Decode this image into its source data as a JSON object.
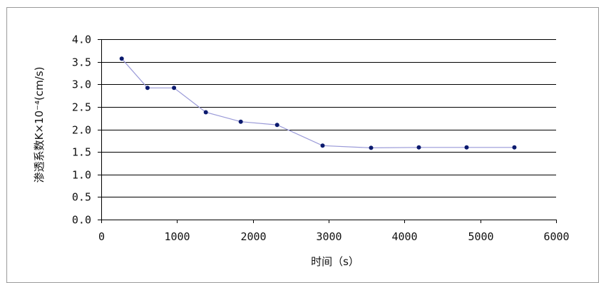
{
  "chart_data": {
    "type": "line",
    "title": "",
    "xlabel": "时间（s）",
    "ylabel": "渗透系数K×10⁻⁴(cm/s)",
    "xlim": [
      0,
      6000
    ],
    "ylim": [
      0.0,
      4.0
    ],
    "x_ticks": [
      "0",
      "1000",
      "2000",
      "3000",
      "4000",
      "5000",
      "6000"
    ],
    "y_ticks": [
      "0.0",
      "0.5",
      "1.0",
      "1.5",
      "2.0",
      "2.5",
      "3.0",
      "3.5",
      "4.0"
    ],
    "grid": "horizontal",
    "legend": "none",
    "series": [
      {
        "x": [
          270,
          610,
          960,
          1380,
          1840,
          2320,
          2920,
          3560,
          4190,
          4820,
          5450
        ],
        "y": [
          3.57,
          2.92,
          2.92,
          2.38,
          2.17,
          2.1,
          1.64,
          1.59,
          1.6,
          1.6,
          1.6
        ]
      }
    ],
    "colors": {
      "line": "#9a9ad8",
      "marker": "#0b1a6e",
      "grid": "#000000"
    }
  }
}
